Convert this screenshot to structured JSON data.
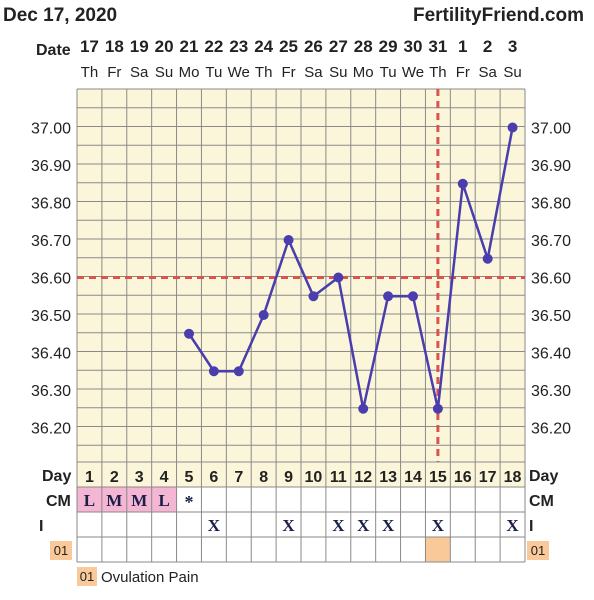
{
  "header": {
    "date": "Dec 17, 2020",
    "brand": "FertilityFriend.com"
  },
  "date_row_label": "Date",
  "day_row_label": "Day",
  "cm_row_label": "CM",
  "i_row_label": "I",
  "custom_row_code": "01",
  "legend": {
    "code": "01",
    "text": "Ovulation Pain"
  },
  "colors": {
    "plot_bg": "#fbf6d9",
    "grid": "#8a8a8a",
    "line": "#4a3dad",
    "coverline": "#d9534f",
    "menses": "#f4b6d2",
    "custom": "#f9c99a"
  },
  "chart_data": {
    "type": "line",
    "dates": [
      "17",
      "18",
      "19",
      "20",
      "21",
      "22",
      "23",
      "24",
      "25",
      "26",
      "27",
      "28",
      "29",
      "30",
      "31",
      "1",
      "2",
      "3"
    ],
    "weekdays": [
      "Th",
      "Fr",
      "Sa",
      "Su",
      "Mo",
      "Tu",
      "We",
      "Th",
      "Fr",
      "Sa",
      "Su",
      "Mo",
      "Tu",
      "We",
      "Th",
      "Fr",
      "Sa",
      "Su"
    ],
    "cycle_days": [
      "1",
      "2",
      "3",
      "4",
      "5",
      "6",
      "7",
      "8",
      "9",
      "10",
      "11",
      "12",
      "13",
      "14",
      "15",
      "16",
      "17",
      "18"
    ],
    "temperatures": [
      null,
      null,
      null,
      null,
      36.45,
      36.35,
      36.35,
      36.5,
      36.7,
      36.55,
      36.6,
      36.25,
      36.55,
      36.55,
      36.25,
      36.85,
      36.65,
      37.0
    ],
    "y_ticks": [
      "37.00",
      "36.90",
      "36.80",
      "36.70",
      "36.60",
      "36.50",
      "36.40",
      "36.30",
      "36.20"
    ],
    "ylim": [
      36.15,
      37.05
    ],
    "coverline": 36.6,
    "ovulation_day_index": 14,
    "cm": [
      "L",
      "M",
      "M",
      "L",
      "*",
      "",
      "",
      "",
      "",
      "",
      "",
      "",
      "",
      "",
      "",
      "",
      "",
      ""
    ],
    "intercourse": [
      "",
      "",
      "",
      "",
      "",
      "X",
      "",
      "",
      "X",
      "",
      "X",
      "X",
      "X",
      "",
      "X",
      "",
      "",
      "X"
    ],
    "custom_marks": [
      false,
      false,
      false,
      false,
      false,
      false,
      false,
      false,
      false,
      false,
      false,
      false,
      false,
      false,
      true,
      false,
      false,
      false
    ]
  }
}
